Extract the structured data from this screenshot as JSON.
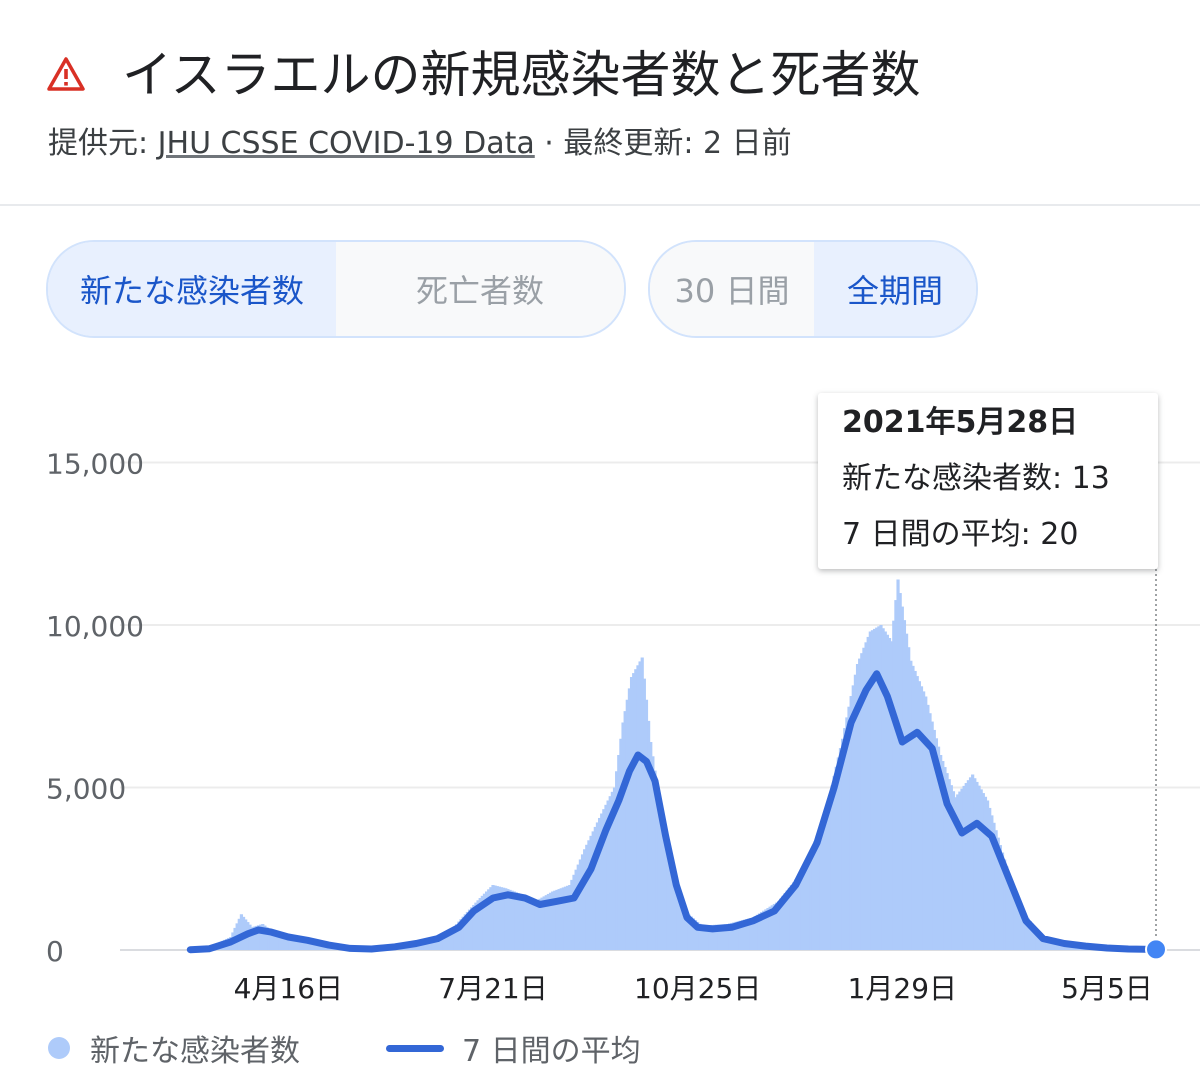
{
  "header": {
    "title": "イスラエルの新規感染者数と死者数",
    "source_prefix": "提供元: ",
    "source_link": "JHU CSSE COVID-19 Data",
    "source_suffix": " · 最終更新: 2 日前",
    "warning_icon": "warning-triangle-icon"
  },
  "toggles": {
    "metric": [
      "新たな感染者数",
      "死亡者数"
    ],
    "metric_active": 0,
    "range": [
      "30 日間",
      "全期間"
    ],
    "range_active": 1
  },
  "tooltip": {
    "date": "2021年5月28日",
    "cases_line": "新たな感染者数: 13",
    "avg_line": "7 日間の平均: 20"
  },
  "legend": {
    "bars": "新たな感染者数",
    "line": "7 日間の平均"
  },
  "colors": {
    "bars": "#aecbfa",
    "line": "#3367d6",
    "accent": "#1a56c9",
    "warning": "#d93025"
  },
  "chart_data": {
    "type": "bar",
    "title": "",
    "xlabel": "",
    "ylabel": "",
    "ylim": [
      0,
      16500
    ],
    "xlim": [
      "2020-02-28",
      "2021-05-28"
    ],
    "x_ticks": [
      {
        "date": "2020-04-16",
        "label": "4月16日"
      },
      {
        "date": "2020-07-21",
        "label": "7月21日"
      },
      {
        "date": "2020-10-25",
        "label": "10月25日"
      },
      {
        "date": "2021-01-29",
        "label": "1月29日"
      },
      {
        "date": "2021-05-05",
        "label": "5月5日"
      }
    ],
    "y_ticks": [
      {
        "value": 0,
        "label": "0"
      },
      {
        "value": 5000,
        "label": "5,000"
      },
      {
        "value": 10000,
        "label": "10,000"
      },
      {
        "value": 15000,
        "label": "15,000"
      }
    ],
    "grid": true,
    "legend_position": "bottom-left",
    "series": [
      {
        "name": "7 日間の平均",
        "kind": "line",
        "points": [
          [
            "2020-03-01",
            10
          ],
          [
            "2020-03-10",
            40
          ],
          [
            "2020-03-20",
            250
          ],
          [
            "2020-03-28",
            500
          ],
          [
            "2020-04-02",
            620
          ],
          [
            "2020-04-08",
            550
          ],
          [
            "2020-04-16",
            400
          ],
          [
            "2020-04-25",
            300
          ],
          [
            "2020-05-05",
            150
          ],
          [
            "2020-05-15",
            50
          ],
          [
            "2020-05-25",
            30
          ],
          [
            "2020-06-05",
            100
          ],
          [
            "2020-06-15",
            200
          ],
          [
            "2020-06-25",
            350
          ],
          [
            "2020-07-05",
            700
          ],
          [
            "2020-07-12",
            1200
          ],
          [
            "2020-07-21",
            1600
          ],
          [
            "2020-07-28",
            1700
          ],
          [
            "2020-08-05",
            1600
          ],
          [
            "2020-08-12",
            1400
          ],
          [
            "2020-08-20",
            1500
          ],
          [
            "2020-08-28",
            1600
          ],
          [
            "2020-09-05",
            2500
          ],
          [
            "2020-09-12",
            3700
          ],
          [
            "2020-09-18",
            4600
          ],
          [
            "2020-09-23",
            5500
          ],
          [
            "2020-09-27",
            6000
          ],
          [
            "2020-10-01",
            5800
          ],
          [
            "2020-10-05",
            5200
          ],
          [
            "2020-10-10",
            3500
          ],
          [
            "2020-10-15",
            2000
          ],
          [
            "2020-10-20",
            1000
          ],
          [
            "2020-10-25",
            700
          ],
          [
            "2020-11-01",
            650
          ],
          [
            "2020-11-10",
            700
          ],
          [
            "2020-11-20",
            900
          ],
          [
            "2020-11-30",
            1200
          ],
          [
            "2020-12-10",
            2000
          ],
          [
            "2020-12-20",
            3300
          ],
          [
            "2020-12-28",
            5000
          ],
          [
            "2021-01-05",
            7000
          ],
          [
            "2021-01-12",
            8000
          ],
          [
            "2021-01-17",
            8500
          ],
          [
            "2021-01-22",
            7800
          ],
          [
            "2021-01-29",
            6400
          ],
          [
            "2021-02-05",
            6700
          ],
          [
            "2021-02-12",
            6200
          ],
          [
            "2021-02-19",
            4500
          ],
          [
            "2021-02-26",
            3600
          ],
          [
            "2021-03-05",
            3900
          ],
          [
            "2021-03-12",
            3500
          ],
          [
            "2021-03-20",
            2200
          ],
          [
            "2021-03-28",
            900
          ],
          [
            "2021-04-05",
            350
          ],
          [
            "2021-04-15",
            200
          ],
          [
            "2021-04-25",
            120
          ],
          [
            "2021-05-05",
            60
          ],
          [
            "2021-05-15",
            30
          ],
          [
            "2021-05-28",
            20
          ]
        ]
      },
      {
        "name": "新たな感染者数",
        "kind": "bars",
        "points": [
          [
            "2020-03-10",
            100
          ],
          [
            "2020-03-20",
            400
          ],
          [
            "2020-03-25",
            1100
          ],
          [
            "2020-03-30",
            700
          ],
          [
            "2020-04-04",
            800
          ],
          [
            "2020-04-10",
            500
          ],
          [
            "2020-04-20",
            350
          ],
          [
            "2020-05-01",
            200
          ],
          [
            "2020-05-15",
            60
          ],
          [
            "2020-06-01",
            100
          ],
          [
            "2020-06-15",
            250
          ],
          [
            "2020-06-30",
            500
          ],
          [
            "2020-07-08",
            1100
          ],
          [
            "2020-07-15",
            1600
          ],
          [
            "2020-07-21",
            2000
          ],
          [
            "2020-07-27",
            1900
          ],
          [
            "2020-08-04",
            1700
          ],
          [
            "2020-08-10",
            1500
          ],
          [
            "2020-08-18",
            1800
          ],
          [
            "2020-08-26",
            2000
          ],
          [
            "2020-09-02",
            3100
          ],
          [
            "2020-09-10",
            4200
          ],
          [
            "2020-09-16",
            5000
          ],
          [
            "2020-09-20",
            7000
          ],
          [
            "2020-09-24",
            8400
          ],
          [
            "2020-09-29",
            9000
          ],
          [
            "2020-10-03",
            6400
          ],
          [
            "2020-10-08",
            4200
          ],
          [
            "2020-10-13",
            2400
          ],
          [
            "2020-10-19",
            1200
          ],
          [
            "2020-10-27",
            750
          ],
          [
            "2020-11-08",
            800
          ],
          [
            "2020-11-20",
            1000
          ],
          [
            "2020-12-02",
            1500
          ],
          [
            "2020-12-14",
            2500
          ],
          [
            "2020-12-24",
            4200
          ],
          [
            "2021-01-01",
            6500
          ],
          [
            "2021-01-08",
            8800
          ],
          [
            "2021-01-14",
            9800
          ],
          [
            "2021-01-19",
            10000
          ],
          [
            "2021-01-24",
            9500
          ],
          [
            "2021-01-27",
            11400
          ],
          [
            "2021-02-02",
            8900
          ],
          [
            "2021-02-09",
            7800
          ],
          [
            "2021-02-16",
            6000
          ],
          [
            "2021-02-23",
            4700
          ],
          [
            "2021-03-03",
            5400
          ],
          [
            "2021-03-10",
            4600
          ],
          [
            "2021-03-17",
            3000
          ],
          [
            "2021-03-25",
            1300
          ],
          [
            "2021-04-05",
            400
          ],
          [
            "2021-04-20",
            150
          ],
          [
            "2021-05-05",
            60
          ],
          [
            "2021-05-20",
            30
          ],
          [
            "2021-05-28",
            13
          ]
        ]
      }
    ]
  }
}
